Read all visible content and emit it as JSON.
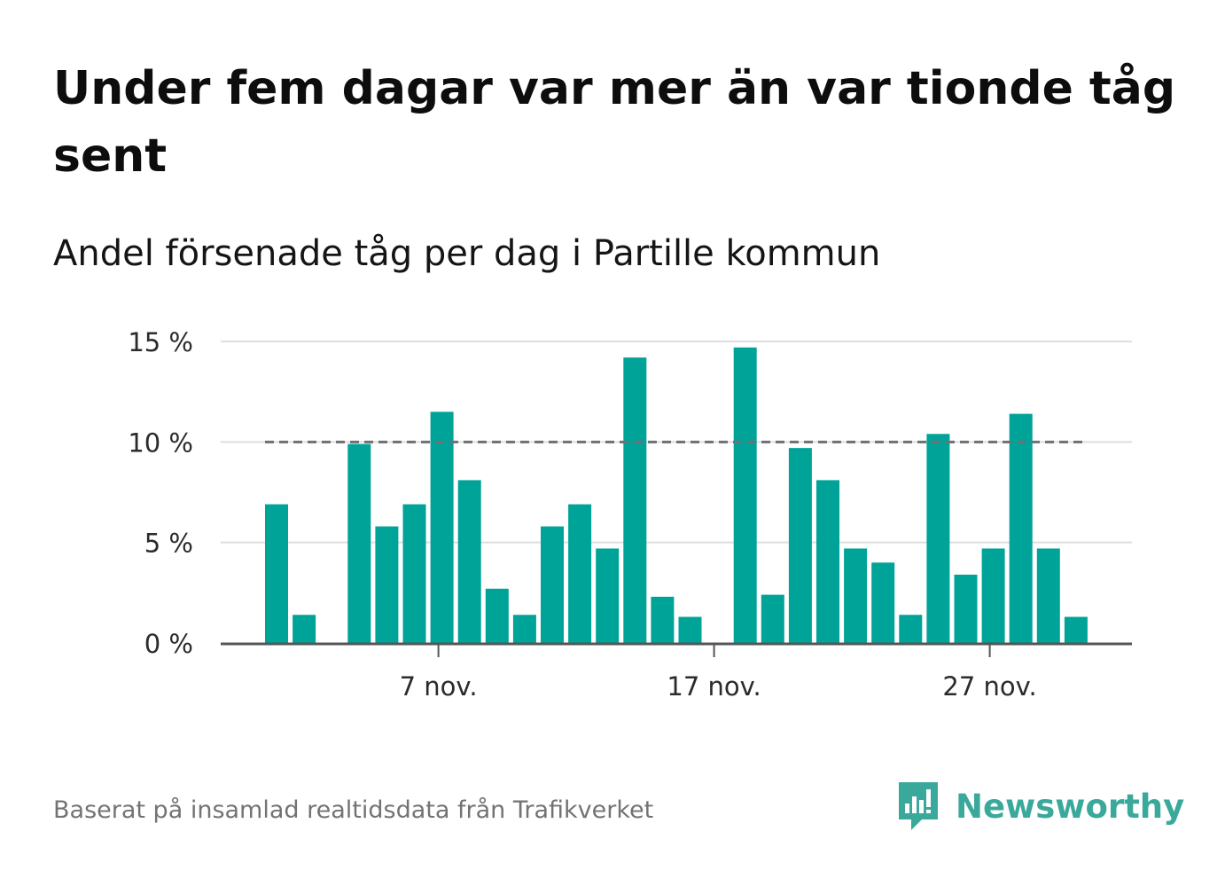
{
  "header": {
    "title": "Under fem dagar var mer än var tionde tåg sent",
    "subtitle": "Andel försenade tåg per dag i Partille kommun"
  },
  "footer": {
    "source": "Baserat på insamlad realtidsdata från Trafikverket",
    "brand": "Newsworthy",
    "brand_icon": "newsworthy-logo-icon"
  },
  "colors": {
    "bar": "#00a398",
    "threshold": "#6f6f74",
    "grid": "#dedede",
    "axis": "#555555",
    "brand": "#3aa99b"
  },
  "chart_data": {
    "type": "bar",
    "x": [
      "2020-11-01",
      "2020-11-02",
      "2020-11-03",
      "2020-11-04",
      "2020-11-05",
      "2020-11-06",
      "2020-11-07",
      "2020-11-08",
      "2020-11-09",
      "2020-11-10",
      "2020-11-11",
      "2020-11-12",
      "2020-11-13",
      "2020-11-14",
      "2020-11-15",
      "2020-11-16",
      "2020-11-17",
      "2020-11-18",
      "2020-11-19",
      "2020-11-20",
      "2020-11-21",
      "2020-11-22",
      "2020-11-23",
      "2020-11-24",
      "2020-11-25",
      "2020-11-26",
      "2020-11-27",
      "2020-11-28",
      "2020-11-29",
      "2020-11-30"
    ],
    "values": [
      6.9,
      1.4,
      0,
      9.9,
      5.8,
      6.9,
      11.5,
      8.1,
      2.7,
      1.4,
      5.8,
      6.9,
      4.7,
      14.2,
      2.3,
      1.3,
      0,
      14.7,
      2.4,
      9.7,
      8.1,
      4.7,
      4.0,
      1.4,
      10.4,
      3.4,
      4.7,
      11.4,
      4.7,
      1.3
    ],
    "ylim": [
      0,
      15
    ],
    "y_ticks": [
      0,
      5,
      10,
      15
    ],
    "y_tick_labels": [
      "0 %",
      "5 %",
      "10 %",
      "15 %"
    ],
    "x_ticks": [
      "2020-11-07",
      "2020-11-17",
      "2020-11-27"
    ],
    "x_tick_labels": [
      "7 nov.",
      "17 nov.",
      "27 nov."
    ],
    "threshold": 10,
    "threshold_style": "dashed",
    "grid": true,
    "legend": "none",
    "title": "Under fem dagar var mer än var tionde tåg sent",
    "subtitle": "Andel försenade tåg per dag i Partille kommun",
    "xlabel": "",
    "ylabel": ""
  }
}
